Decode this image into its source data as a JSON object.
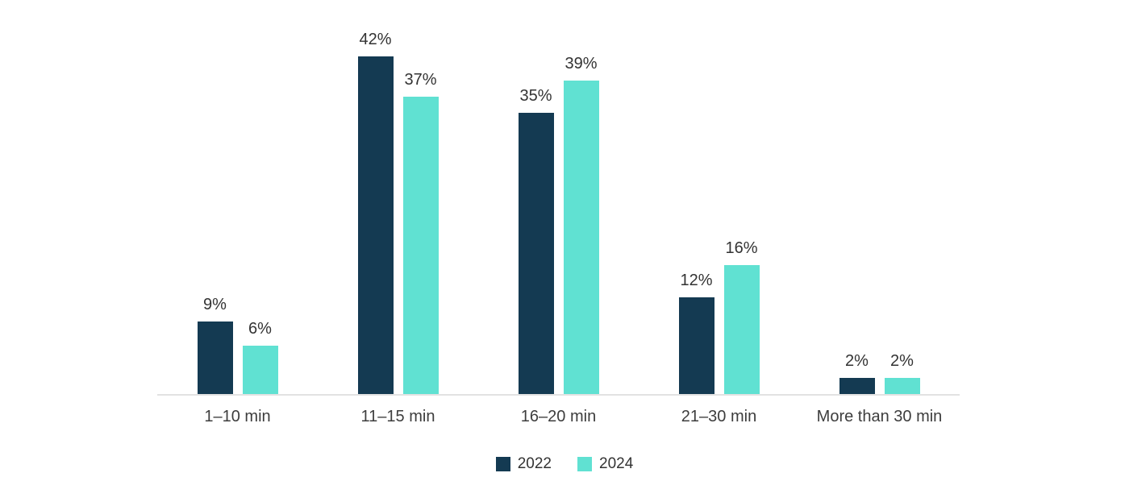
{
  "chart_data": {
    "type": "bar",
    "categories": [
      "1–10 min",
      "11–15 min",
      "16–20 min",
      "21–30 min",
      "More than 30 min"
    ],
    "series": [
      {
        "name": "2022",
        "color": "#143a52",
        "values": [
          9,
          42,
          35,
          12,
          2
        ]
      },
      {
        "name": "2024",
        "color": "#60e1d2",
        "values": [
          6,
          37,
          39,
          16,
          2
        ]
      }
    ],
    "value_label_suffix": "%",
    "title": "",
    "xlabel": "",
    "ylabel": "",
    "ylim": [
      0,
      45
    ],
    "grid": false,
    "legend_position": "bottom"
  },
  "colors": {
    "background": "#ffffff",
    "axis_line": "#e2e2e2",
    "value_label_text": "#333333",
    "category_label_text": "#3d3d3d"
  }
}
